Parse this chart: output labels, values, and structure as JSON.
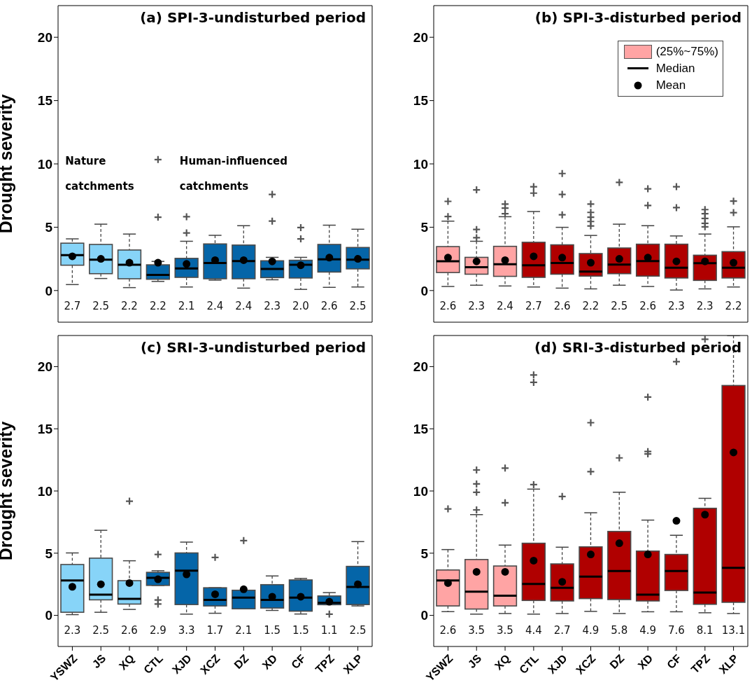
{
  "chart_data": [
    {
      "type": "box",
      "title": "(a) SPI-3-undisturbed period",
      "ylabel": "Drought severity",
      "categories": [
        null,
        null,
        null,
        null,
        null,
        null,
        null,
        null,
        null,
        null,
        null
      ],
      "ylim": [
        -2.5,
        22.5
      ],
      "yticks": [
        0,
        5,
        10,
        15,
        20
      ],
      "tick_labels": "y",
      "annotations": [
        "Nature catchments",
        "Human-influenced catchments"
      ],
      "value_labels": [
        "2.7",
        "2.5",
        "2.2",
        "2.2",
        "2.1",
        "2.4",
        "2.4",
        "2.3",
        "2.0",
        "2.6",
        "2.5"
      ],
      "series": [
        {
          "color": "#87d4f8",
          "boxes": [
            {
              "low": 0.47,
              "q1": 2.0,
              "median": 2.79,
              "q3": 3.74,
              "high": 4.08,
              "mean": 2.7
            },
            {
              "low": 0.95,
              "q1": 1.33,
              "median": 2.43,
              "q3": 3.64,
              "high": 5.24,
              "mean": 2.5
            },
            {
              "low": 0.23,
              "q1": 0.93,
              "median": 2.03,
              "q3": 3.2,
              "high": 4.46,
              "mean": 2.2
            },
            null,
            null,
            null,
            null,
            null,
            null,
            null,
            null
          ]
        },
        {
          "color": "#0565a8",
          "boxes": [
            null,
            null,
            null,
            {
              "low": 0.72,
              "q1": 0.89,
              "median": 1.23,
              "q3": 2.03,
              "high": 2.3,
              "mean": 2.2,
              "outliers": [
                10.34,
                5.79
              ]
            },
            {
              "low": 0.28,
              "q1": 1.04,
              "median": 1.75,
              "q3": 2.54,
              "high": 3.89,
              "mean": 2.1,
              "outliers": [
                5.83,
                4.55
              ]
            },
            {
              "low": 0.82,
              "q1": 0.93,
              "median": 2.18,
              "q3": 3.68,
              "high": 4.36,
              "mean": 2.4
            },
            {
              "low": 0.19,
              "q1": 0.93,
              "median": 2.33,
              "q3": 3.59,
              "high": 5.12,
              "mean": 2.4
            },
            {
              "low": 0.85,
              "q1": 1.02,
              "median": 1.71,
              "q3": 2.35,
              "high": 2.62,
              "mean": 2.3,
              "outliers": [
                7.59,
                5.48
              ]
            },
            {
              "low": 0.09,
              "q1": 0.99,
              "median": 2.03,
              "q3": 2.39,
              "high": 2.62,
              "mean": 2.0,
              "outliers": [
                4.97,
                4.08
              ]
            },
            {
              "low": 0.25,
              "q1": 1.46,
              "median": 2.47,
              "q3": 3.64,
              "high": 5.16,
              "mean": 2.6
            },
            {
              "low": 0.28,
              "q1": 1.71,
              "median": 2.43,
              "q3": 3.4,
              "high": 4.84,
              "mean": 2.5
            }
          ]
        }
      ]
    },
    {
      "type": "box",
      "title": "(b) SPI-3-disturbed period",
      "categories": [
        null,
        null,
        null,
        null,
        null,
        null,
        null,
        null,
        null,
        null,
        null
      ],
      "ylim": [
        -2.5,
        22.5
      ],
      "yticks": [
        0,
        5,
        10,
        15,
        20
      ],
      "tick_labels": "y",
      "legend": "top right",
      "annotations": [
        "Median",
        "Mean"
      ],
      "value_labels": [
        "2.6",
        "2.3",
        "2.4",
        "2.7",
        "2.6",
        "2.2",
        "2.5",
        "2.6",
        "2.3",
        "2.3",
        "2.2"
      ],
      "series": [
        {
          "name": "(25%~75%)",
          "color": "#ffa4a4",
          "boxes": [
            {
              "low": 0.32,
              "q1": 1.42,
              "median": 2.31,
              "q3": 3.47,
              "high": 5.48,
              "mean": 2.6,
              "outliers": [
                7.04,
                5.84
              ]
            },
            {
              "low": 0.42,
              "q1": 1.29,
              "median": 1.84,
              "q3": 2.62,
              "high": 3.89,
              "mean": 2.3,
              "outliers": [
                7.95,
                4.82,
                4.17
              ]
            },
            {
              "low": 0.36,
              "q1": 1.12,
              "median": 2.07,
              "q3": 3.49,
              "high": 5.83,
              "mean": 2.4,
              "outliers": [
                6.83,
                6.51,
                6.07
              ]
            },
            null,
            null,
            null,
            null,
            null,
            null,
            null,
            null
          ]
        },
        {
          "color": "#b00000",
          "boxes": [
            null,
            null,
            null,
            {
              "low": 0.28,
              "q1": 1.04,
              "median": 1.99,
              "q3": 3.81,
              "high": 6.24,
              "mean": 2.7,
              "outliers": [
                8.2,
                7.69
              ]
            },
            {
              "low": 0.19,
              "q1": 1.29,
              "median": 2.18,
              "q3": 3.61,
              "high": 4.99,
              "mean": 2.6,
              "outliers": [
                9.24,
                7.59,
                5.98
              ]
            },
            {
              "low": 0.13,
              "q1": 1.14,
              "median": 1.5,
              "q3": 2.92,
              "high": 4.35,
              "mean": 2.2,
              "outliers": [
                6.83,
                6.17,
                5.79,
                5.45,
                5.1
              ]
            },
            {
              "low": 0.42,
              "q1": 1.33,
              "median": 2.05,
              "q3": 3.36,
              "high": 5.24,
              "mean": 2.5,
              "outliers": [
                8.54
              ]
            },
            {
              "low": 0.32,
              "q1": 1.14,
              "median": 2.33,
              "q3": 3.66,
              "high": 5.12,
              "mean": 2.6,
              "outliers": [
                8.03,
                6.72
              ]
            },
            {
              "low": 0.04,
              "q1": 0.99,
              "median": 1.8,
              "q3": 3.66,
              "high": 4.31,
              "mean": 2.3,
              "outliers": [
                8.2,
                6.55
              ]
            },
            {
              "low": 0.13,
              "q1": 0.8,
              "median": 2.16,
              "q3": 2.79,
              "high": 4.46,
              "mean": 2.3,
              "outliers": [
                6.39,
                6.07,
                5.69,
                5.31,
                5.03
              ]
            },
            {
              "low": 0.28,
              "q1": 0.99,
              "median": 1.8,
              "q3": 3.07,
              "high": 5.03,
              "mean": 2.2,
              "outliers": [
                7.06,
                6.15
              ]
            }
          ]
        }
      ]
    },
    {
      "type": "box",
      "title": "(c) SRI-3-undisturbed period",
      "ylabel": "Drought severity",
      "categories": [
        "YSWZ",
        "JS",
        "XQ",
        "CTL",
        "XJD",
        "XCZ",
        "DZ",
        "XD",
        "CF",
        "TPZ",
        "XLP"
      ],
      "ylim": [
        -2.5,
        22.5
      ],
      "yticks": [
        0,
        5,
        10,
        15,
        20
      ],
      "value_labels": [
        "2.3",
        "2.5",
        "2.6",
        "2.9",
        "3.3",
        "1.7",
        "2.1",
        "1.5",
        "1.5",
        "1.1",
        "2.5"
      ],
      "series": [
        {
          "color": "#87d4f8",
          "boxes": [
            {
              "low": 0.06,
              "q1": 0.25,
              "median": 2.81,
              "q3": 4.09,
              "high": 5.02,
              "mean": 2.3
            },
            {
              "low": 0.25,
              "q1": 1.25,
              "median": 1.67,
              "q3": 4.6,
              "high": 6.84,
              "mean": 2.5
            },
            {
              "low": 0.48,
              "q1": 0.91,
              "median": 1.33,
              "q3": 2.79,
              "high": 4.39,
              "mean": 2.6,
              "outliers": [
                9.18
              ]
            },
            null,
            null,
            null,
            null,
            null,
            null,
            null,
            null
          ]
        },
        {
          "color": "#0565a8",
          "boxes": [
            null,
            null,
            null,
            {
              "low": 2.41,
              "q1": 2.41,
              "median": 3.02,
              "q3": 3.46,
              "high": 3.59,
              "mean": 2.9,
              "outliers": [
                4.9,
                1.24,
                0.91
              ]
            },
            {
              "low": 0.1,
              "q1": 0.87,
              "median": 3.59,
              "q3": 5.02,
              "high": 5.89,
              "mean": 3.3
            },
            {
              "low": 0.17,
              "q1": 0.76,
              "median": 1.24,
              "q3": 2.22,
              "high": 2.22,
              "mean": 1.7,
              "outliers": [
                4.66
              ]
            },
            {
              "low": 0.53,
              "q1": 0.53,
              "median": 1.43,
              "q3": 2.02,
              "high": 2.02,
              "mean": 2.1,
              "outliers": [
                6.01
              ]
            },
            {
              "low": 0.4,
              "q1": 0.59,
              "median": 1.24,
              "q3": 2.47,
              "high": 3.17,
              "mean": 1.5
            },
            {
              "low": 0.11,
              "q1": 0.34,
              "median": 1.43,
              "q3": 2.85,
              "high": 2.97,
              "mean": 1.5
            },
            {
              "low": 0.86,
              "q1": 0.86,
              "median": 1.01,
              "q3": 1.56,
              "high": 1.83,
              "mean": 1.1,
              "outliers": [
                0.1
              ]
            },
            {
              "low": 0.76,
              "q1": 0.87,
              "median": 2.28,
              "q3": 3.94,
              "high": 5.93,
              "mean": 2.5
            }
          ]
        }
      ]
    },
    {
      "type": "box",
      "title": "(d) SRI-3-disturbed period",
      "categories": [
        "YSWZ",
        "JS",
        "XQ",
        "CTL",
        "XJD",
        "XCZ",
        "DZ",
        "XD",
        "CF",
        "TPZ",
        "XLP"
      ],
      "ylim": [
        -2.5,
        22.5
      ],
      "yticks": [
        0,
        5,
        10,
        15,
        20
      ],
      "value_labels": [
        "2.6",
        "3.5",
        "3.5",
        "4.4",
        "2.7",
        "4.9",
        "5.8",
        "4.9",
        "7.6",
        "8.1",
        "13.1"
      ],
      "series": [
        {
          "color": "#ffa4a4",
          "boxes": [
            {
              "low": 0.3,
              "q1": 0.76,
              "median": 2.81,
              "q3": 3.65,
              "high": 5.29,
              "mean": 2.6,
              "outliers": [
                8.56
              ]
            },
            {
              "low": 0.1,
              "q1": 0.51,
              "median": 1.9,
              "q3": 4.49,
              "high": 8.1,
              "mean": 3.5,
              "outliers": [
                11.69,
                10.57,
                9.9,
                8.48
              ]
            },
            {
              "low": 0.15,
              "q1": 0.76,
              "median": 1.58,
              "q3": 3.97,
              "high": 5.65,
              "mean": 3.5,
              "outliers": [
                11.84,
                9.05
              ]
            },
            null,
            null,
            null,
            null,
            null,
            null,
            null,
            null
          ]
        },
        {
          "color": "#b00000",
          "boxes": [
            null,
            null,
            null,
            {
              "low": 0.1,
              "q1": 1.2,
              "median": 2.53,
              "q3": 5.8,
              "high": 10.15,
              "mean": 4.4,
              "outliers": [
                19.33,
                18.73,
                10.51
              ]
            },
            {
              "low": 0.15,
              "q1": 1.16,
              "median": 2.21,
              "q3": 4.14,
              "high": 5.48,
              "mean": 2.7,
              "outliers": [
                9.56
              ]
            },
            {
              "low": 0.32,
              "q1": 1.35,
              "median": 3.12,
              "q3": 5.51,
              "high": 8.25,
              "mean": 4.9,
              "outliers": [
                15.49,
                11.56
              ]
            },
            {
              "low": 0.15,
              "q1": 1.27,
              "median": 3.56,
              "q3": 6.75,
              "high": 9.9,
              "mean": 5.8,
              "outliers": [
                12.66
              ]
            },
            {
              "low": 0.29,
              "q1": 1.16,
              "median": 1.67,
              "q3": 5.17,
              "high": 7.66,
              "mean": 4.9,
              "outliers": [
                17.55,
                13.17,
                12.98
              ]
            },
            {
              "low": 0.29,
              "q1": 2.0,
              "median": 3.57,
              "q3": 4.9,
              "high": 6.44,
              "mean": 7.6,
              "outliers": [
                20.4
              ]
            },
            {
              "low": 0.21,
              "q1": 0.89,
              "median": 1.84,
              "q3": 8.61,
              "high": 9.41,
              "mean": 8.1,
              "outliers": [
                22.2
              ]
            },
            {
              "low": 0.15,
              "q1": 1.05,
              "median": 3.82,
              "q3": 18.48,
              "high": 22.5,
              "mean": 13.1
            }
          ]
        }
      ]
    }
  ]
}
